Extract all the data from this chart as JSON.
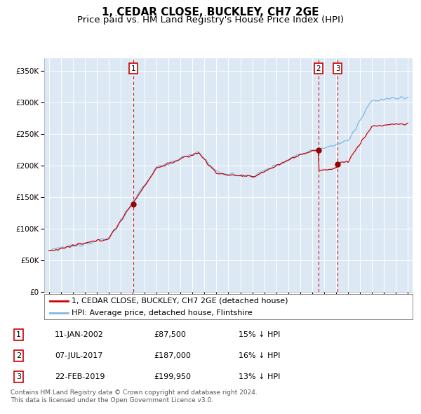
{
  "title": "1, CEDAR CLOSE, BUCKLEY, CH7 2GE",
  "subtitle": "Price paid vs. HM Land Registry's House Price Index (HPI)",
  "plot_background": "#dce9f5",
  "hpi_color": "#7fb8e0",
  "price_color": "#cc0000",
  "vline_color": "#cc0000",
  "transactions": [
    {
      "num": 1,
      "x": 2002.03,
      "price": 87500
    },
    {
      "num": 2,
      "x": 2017.52,
      "price": 187000
    },
    {
      "num": 3,
      "x": 2019.14,
      "price": 199950
    }
  ],
  "legend_entries": [
    "1, CEDAR CLOSE, BUCKLEY, CH7 2GE (detached house)",
    "HPI: Average price, detached house, Flintshire"
  ],
  "footer_lines": [
    "Contains HM Land Registry data © Crown copyright and database right 2024.",
    "This data is licensed under the Open Government Licence v3.0."
  ],
  "table_rows": [
    [
      "1",
      "11-JAN-2002",
      "£87,500",
      "15% ↓ HPI"
    ],
    [
      "2",
      "07-JUL-2017",
      "£187,000",
      "16% ↓ HPI"
    ],
    [
      "3",
      "22-FEB-2019",
      "£199,950",
      "13% ↓ HPI"
    ]
  ],
  "ylim": [
    0,
    370000
  ],
  "yticks": [
    0,
    50000,
    100000,
    150000,
    200000,
    250000,
    300000,
    350000
  ],
  "ytick_labels": [
    "£0",
    "£50K",
    "£100K",
    "£150K",
    "£200K",
    "£250K",
    "£300K",
    "£350K"
  ],
  "xlim_start": 1994.6,
  "xlim_end": 2025.4,
  "title_fontsize": 11,
  "subtitle_fontsize": 9.5,
  "tick_fontsize": 7.5,
  "label_fontsize": 8
}
